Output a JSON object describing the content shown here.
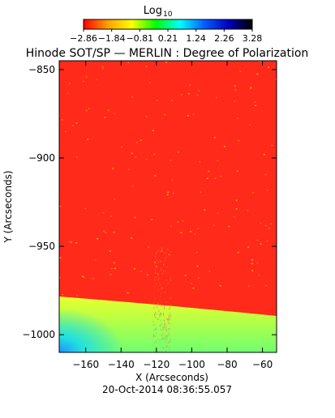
{
  "chart_data": {
    "type": "heatmap",
    "title": "Hinode SOT/SP — MERLIN : Degree of Polarization",
    "timestamp": "20-Oct-2014 08:36:55.057",
    "xlabel": "X (Arcseconds)",
    "ylabel": "Y (Arcseconds)",
    "xlim": [
      -175,
      -52
    ],
    "ylim": [
      -1010,
      -845
    ],
    "x_ticks": [
      -160,
      -140,
      -120,
      -100,
      -80,
      -60
    ],
    "x_tick_labels": [
      "−160",
      "−140",
      "−120",
      "−100",
      "−80",
      "−60"
    ],
    "y_ticks": [
      -850,
      -900,
      -950,
      -1000
    ],
    "y_tick_labels": [
      "−850",
      "−900",
      "−950",
      "−1000"
    ],
    "colorbar": {
      "label_base": "Log",
      "label_sub": "10",
      "min": -2.86,
      "max": 3.28,
      "tick_labels": [
        "−2.86",
        "−1.84",
        "−0.81",
        "0.21",
        "1.24",
        "2.26",
        "3.28"
      ],
      "colors": [
        "#ff0000",
        "#ffa000",
        "#ffff00",
        "#00ff00",
        "#00ffff",
        "#0060ff",
        "#0000c0",
        "#000000"
      ]
    },
    "regions": {
      "disk_color": "#ff2a1a",
      "limb_color": "#d8ff40",
      "outer_color": "#a0ff60",
      "corner_color": "#20d0ff"
    }
  }
}
